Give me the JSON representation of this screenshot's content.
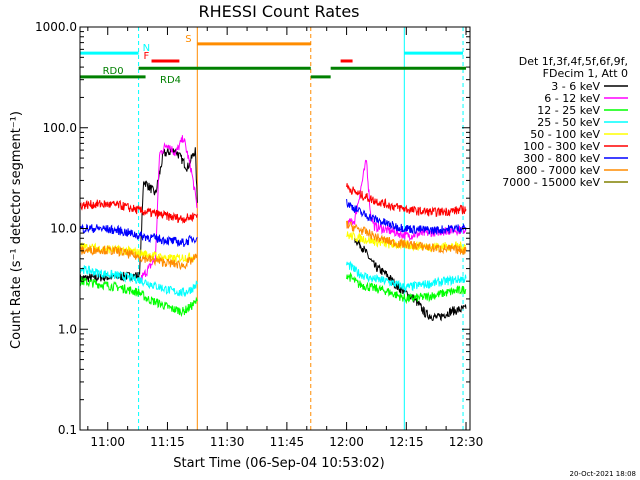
{
  "chart_data": {
    "type": "line",
    "title": "RHESSI Count Rates",
    "xlabel": "Start Time (06-Sep-04 10:53:02)",
    "ylabel": "Count Rate (s⁻¹ detector segment⁻¹)",
    "yscale": "log",
    "ylim": [
      0.1,
      1000
    ],
    "xlim": [
      "10:53:02",
      "12:31:00"
    ],
    "x_ticks": [
      "11:00",
      "11:15",
      "11:30",
      "11:45",
      "12:00",
      "12:15",
      "12:30"
    ],
    "y_ticks": [
      "0.1",
      "1.0",
      "10.0",
      "100.0",
      "1000.0"
    ],
    "footer": "20-Oct-2021 18:08",
    "legend": {
      "placement": "right",
      "header": [
        "Det 1f,3f,4f,5f,6f,9f,",
        "FDecim 1, Att 0"
      ]
    },
    "series": [
      {
        "name": "3 - 6 keV",
        "color": "#000000",
        "points": [
          [
            "10:53",
            3.2
          ],
          [
            "11:08",
            3.4
          ],
          [
            "11:09",
            30
          ],
          [
            "11:12",
            22
          ],
          [
            "11:14",
            55
          ],
          [
            "11:17",
            60
          ],
          [
            "11:20",
            40
          ],
          [
            "11:22",
            60
          ],
          [
            "11:22.5",
            18
          ],
          null,
          [
            "12:02",
            8
          ],
          [
            "12:04",
            6.5
          ],
          [
            "12:07",
            4.2
          ],
          [
            "12:10",
            3.5
          ],
          [
            "12:13",
            2.6
          ],
          [
            "12:17",
            2.0
          ],
          [
            "12:20",
            1.4
          ],
          [
            "12:23",
            1.3
          ],
          [
            "12:26",
            1.5
          ],
          [
            "12:30",
            1.6
          ]
        ]
      },
      {
        "name": "6 - 12 keV",
        "color": "#ff00ff",
        "points": [
          [
            "11:08",
            3.0
          ],
          [
            "11:12",
            5.0
          ],
          [
            "11:13",
            55
          ],
          [
            "11:15",
            70
          ],
          [
            "11:17",
            55
          ],
          [
            "11:19",
            80
          ],
          [
            "11:21",
            38
          ],
          [
            "11:22.5",
            16
          ],
          null,
          [
            "12:00",
            11
          ],
          [
            "12:02",
            12
          ],
          [
            "12:05",
            48
          ],
          [
            "12:06",
            14
          ],
          [
            "12:07",
            10.5
          ],
          [
            "12:15",
            8.5
          ],
          [
            "12:20",
            9.0
          ],
          [
            "12:25",
            9.5
          ],
          [
            "12:30",
            9.8
          ]
        ]
      },
      {
        "name": "12 - 25 keV",
        "color": "#00ff00",
        "points": [
          [
            "10:53",
            3.0
          ],
          [
            "10:58",
            2.8
          ],
          [
            "11:03",
            2.6
          ],
          [
            "11:08",
            2.3
          ],
          [
            "11:10",
            2.0
          ],
          [
            "11:13",
            1.8
          ],
          [
            "11:16",
            1.6
          ],
          [
            "11:19",
            1.5
          ],
          [
            "11:21",
            1.7
          ],
          [
            "11:22.5",
            1.9
          ],
          null,
          [
            "12:00",
            3.5
          ],
          [
            "12:03",
            2.8
          ],
          [
            "12:06",
            2.6
          ],
          [
            "12:10",
            2.4
          ],
          [
            "12:15",
            2.0
          ],
          [
            "12:20",
            2.1
          ],
          [
            "12:25",
            2.3
          ],
          [
            "12:30",
            2.5
          ]
        ]
      },
      {
        "name": "25 - 50 keV",
        "color": "#00ffff",
        "points": [
          [
            "10:53",
            4.0
          ],
          [
            "10:58",
            3.6
          ],
          [
            "11:03",
            3.4
          ],
          [
            "11:08",
            3.1
          ],
          [
            "11:12",
            2.7
          ],
          [
            "11:16",
            2.4
          ],
          [
            "11:19",
            2.3
          ],
          [
            "11:21",
            2.5
          ],
          [
            "11:22.5",
            2.8
          ],
          null,
          [
            "12:00",
            4.5
          ],
          [
            "12:03",
            3.6
          ],
          [
            "12:06",
            3.2
          ],
          [
            "12:10",
            3.0
          ],
          [
            "12:15",
            2.6
          ],
          [
            "12:20",
            2.8
          ],
          [
            "12:25",
            3.0
          ],
          [
            "12:30",
            3.2
          ]
        ]
      },
      {
        "name": "50 - 100 keV",
        "color": "#ffff00",
        "points": [
          [
            "10:53",
            6.6
          ],
          [
            "11:05",
            6.0
          ],
          [
            "11:10",
            5.5
          ],
          [
            "11:16",
            5.0
          ],
          [
            "11:22",
            5.3
          ],
          null,
          [
            "12:00",
            8.6
          ],
          [
            "12:10",
            7.0
          ],
          [
            "12:20",
            6.6
          ],
          [
            "12:30",
            6.7
          ]
        ]
      },
      {
        "name": "100 - 300 keV",
        "color": "#ff0000",
        "points": [
          [
            "10:53",
            17
          ],
          [
            "10:58",
            17.5
          ],
          [
            "11:03",
            17
          ],
          [
            "11:08",
            15
          ],
          [
            "11:12",
            14
          ],
          [
            "11:16",
            13
          ],
          [
            "11:19",
            12.5
          ],
          [
            "11:21",
            13
          ],
          [
            "11:22.5",
            14
          ],
          null,
          [
            "12:00",
            26
          ],
          [
            "12:03",
            22
          ],
          [
            "12:07",
            19
          ],
          [
            "12:12",
            16.5
          ],
          [
            "12:17",
            15
          ],
          [
            "12:22",
            14.5
          ],
          [
            "12:27",
            15
          ],
          [
            "12:30",
            15.5
          ]
        ]
      },
      {
        "name": "300 - 800 keV",
        "color": "#0000ff",
        "points": [
          [
            "10:53",
            10
          ],
          [
            "10:58",
            10
          ],
          [
            "11:03",
            9.5
          ],
          [
            "11:08",
            8.5
          ],
          [
            "11:12",
            8.0
          ],
          [
            "11:16",
            7.5
          ],
          [
            "11:19",
            7.2
          ],
          [
            "11:21",
            7.8
          ],
          [
            "11:22.5",
            8.2
          ],
          null,
          [
            "12:00",
            18
          ],
          [
            "12:04",
            14
          ],
          [
            "12:08",
            12
          ],
          [
            "12:12",
            10.5
          ],
          [
            "12:17",
            9.8
          ],
          [
            "12:22",
            9.6
          ],
          [
            "12:27",
            10
          ],
          [
            "12:30",
            10.2
          ]
        ]
      },
      {
        "name": "800 - 7000 keV",
        "color": "#ff8c00",
        "points": [
          [
            "10:53",
            6.0
          ],
          [
            "10:58",
            6.2
          ],
          [
            "11:03",
            5.9
          ],
          [
            "11:08",
            5.2
          ],
          [
            "11:12",
            4.8
          ],
          [
            "11:16",
            4.5
          ],
          [
            "11:19",
            4.3
          ],
          [
            "11:21",
            4.8
          ],
          [
            "11:22.5",
            5.3
          ],
          null,
          [
            "12:00",
            11
          ],
          [
            "12:04",
            9.5
          ],
          [
            "12:08",
            8.0
          ],
          [
            "12:12",
            7.2
          ],
          [
            "12:17",
            6.8
          ],
          [
            "12:22",
            6.4
          ],
          [
            "12:27",
            6.2
          ],
          [
            "12:30",
            6.0
          ]
        ]
      },
      {
        "name": "7000 - 15000 keV",
        "color": "#808000",
        "points": []
      }
    ],
    "annotations": {
      "vlines": [
        {
          "x": "10:53:02",
          "color": "#00ffff",
          "style": "solid"
        },
        {
          "x": "11:07:45",
          "color": "#00ffff",
          "style": "dashed"
        },
        {
          "x": "11:22:30",
          "color": "#ff8c00",
          "style": "solid"
        },
        {
          "x": "11:51:00",
          "color": "#ff8c00",
          "style": "dashed"
        },
        {
          "x": "12:14:30",
          "color": "#00ffff",
          "style": "solid"
        },
        {
          "x": "12:29:15",
          "color": "#00ffff",
          "style": "dashed"
        }
      ],
      "bars": [
        {
          "label": "N",
          "color": "#00ffff",
          "from": "10:53:02",
          "to": "11:07:45",
          "level": 550
        },
        {
          "label": "",
          "color": "#00ffff",
          "from": "12:14:30",
          "to": "12:29:15",
          "level": 550
        },
        {
          "label": "S",
          "color": "#ff8c00",
          "from": "11:22:30",
          "to": "11:51:00",
          "level": 680
        },
        {
          "label": "F",
          "color": "#ff0000",
          "from": "11:11:00",
          "to": "11:18:00",
          "level": 460
        },
        {
          "label": "",
          "color": "#ff0000",
          "from": "11:58:30",
          "to": "12:01:30",
          "level": 460
        },
        {
          "label": "RD0",
          "color": "#008000",
          "from": "11:07:45",
          "to": "11:51:00",
          "level": 390
        },
        {
          "label": "",
          "color": "#008000",
          "from": "11:56:00",
          "to": "12:30:00",
          "level": 390
        },
        {
          "label": "RD4",
          "color": "#008000",
          "from": "10:53:02",
          "to": "11:09:30",
          "level": 320
        },
        {
          "label": "",
          "color": "#008000",
          "from": "11:51:00",
          "to": "11:56:00",
          "level": 320
        }
      ]
    }
  }
}
